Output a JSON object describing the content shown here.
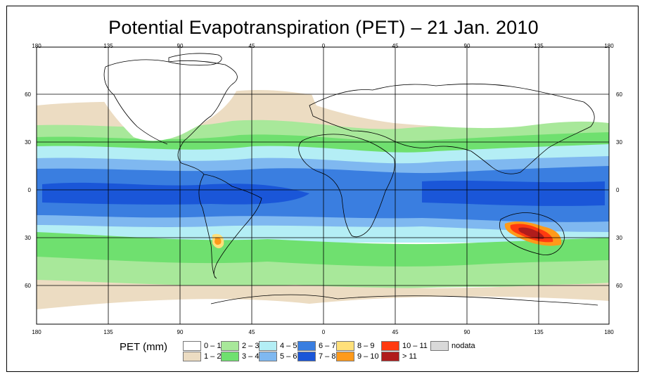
{
  "title": "Potential Evapotranspiration (PET) – 21 Jan. 2010",
  "top_axis_labels": [
    "180",
    "135",
    "90",
    "45",
    "0",
    "45",
    "90",
    "135",
    "180"
  ],
  "bottom_axis_labels": [
    "180",
    "135",
    "90",
    "45",
    "0",
    "45",
    "90",
    "135",
    "180"
  ],
  "left_axis_labels": [
    "60",
    "30",
    "0",
    "30",
    "60"
  ],
  "right_axis_labels": [
    "60",
    "30",
    "0",
    "30",
    "60"
  ],
  "legend": {
    "title": "PET (mm)",
    "items": [
      {
        "label": "0 – 1",
        "color": "#ffffff"
      },
      {
        "label": "1 – 2",
        "color": "#ecdcc2"
      },
      {
        "label": "2 – 3",
        "color": "#a8e89a"
      },
      {
        "label": "3 – 4",
        "color": "#6fe06f"
      },
      {
        "label": "4 – 5",
        "color": "#b4eef5"
      },
      {
        "label": "5 – 6",
        "color": "#7fb8f0"
      },
      {
        "label": "6 – 7",
        "color": "#3a7ee0"
      },
      {
        "label": "7 – 8",
        "color": "#1a56d8"
      },
      {
        "label": "8 – 9",
        "color": "#ffe07a"
      },
      {
        "label": "9 – 10",
        "color": "#ff9a1a"
      },
      {
        "label": "10 – 11",
        "color": "#ff3a10"
      },
      {
        "label": "> 11",
        "color": "#b01c1c"
      },
      {
        "label": "nodata",
        "color": "#d9d9d9"
      }
    ]
  },
  "colors": {
    "frame": "#000000",
    "grid": "#000000",
    "coast": "#000000"
  }
}
